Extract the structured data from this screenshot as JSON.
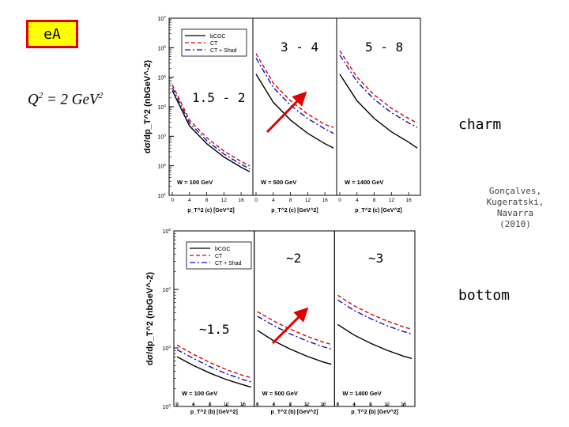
{
  "slide": {
    "ea_label": "eA",
    "q2": {
      "prefix": "Q",
      "sup": "2",
      "middle": " = 2  GeV",
      "sup2": "2"
    },
    "charm_label": "charm",
    "bottom_label": "bottom",
    "citation": [
      "Gonçalves,",
      "Kugeratski,",
      "Navarra",
      "(2010)"
    ],
    "annotations": {
      "charm_ratio_1": "1.5 - 2",
      "charm_ratio_2": "3 - 4",
      "charm_ratio_3": "5 - 8",
      "bottom_ratio_1": "~1.5",
      "bottom_ratio_2": "~2",
      "bottom_ratio_3": "~3"
    },
    "colors": {
      "box_fill": "#ffff00",
      "box_border": "#e00000",
      "arrow": "#e00000",
      "bcgc": "#000000",
      "ct": "#e00000",
      "ct_shad": "#1010c0"
    }
  },
  "chart_data": [
    {
      "type": "line",
      "title": "charm",
      "ylabel": "dσ/dp_T^2 (nbGeV^-2)",
      "xlabel": "p_T^2 (c) [GeV^2]",
      "ylim_log10": [
        1,
        7
      ],
      "y_ticks": [
        "10^1",
        "10^2",
        "10^3",
        "10^4",
        "10^5",
        "10^6",
        "10^7"
      ],
      "xlim": [
        0,
        18
      ],
      "x_ticks": [
        "0",
        "4",
        "8",
        "12",
        "16"
      ],
      "legend": [
        "bCGC",
        "CT",
        "CT + Shad"
      ],
      "legend_position": "top-left",
      "panels": [
        {
          "label": "W = 100 GeV",
          "series": [
            {
              "name": "bCGC",
              "x": [
                0,
                4,
                8,
                12,
                16,
                18
              ],
              "log10y": [
                4.55,
                3.35,
                2.75,
                2.3,
                1.95,
                1.8
              ]
            },
            {
              "name": "CT",
              "x": [
                0,
                4,
                8,
                12,
                16,
                18
              ],
              "log10y": [
                4.75,
                3.55,
                2.95,
                2.5,
                2.15,
                2.0
              ]
            },
            {
              "name": "CT + Shad",
              "x": [
                0,
                4,
                8,
                12,
                16,
                18
              ],
              "log10y": [
                4.65,
                3.45,
                2.85,
                2.4,
                2.05,
                1.9
              ]
            }
          ]
        },
        {
          "label": "W = 500 GeV",
          "series": [
            {
              "name": "bCGC",
              "x": [
                0,
                4,
                8,
                12,
                16,
                18
              ],
              "log10y": [
                5.1,
                4.15,
                3.55,
                3.1,
                2.75,
                2.6
              ]
            },
            {
              "name": "CT",
              "x": [
                0,
                4,
                8,
                12,
                16,
                18
              ],
              "log10y": [
                5.8,
                4.8,
                4.2,
                3.75,
                3.4,
                3.3
              ]
            },
            {
              "name": "CT + Shad",
              "x": [
                0,
                4,
                8,
                12,
                16,
                18
              ],
              "log10y": [
                5.65,
                4.65,
                4.05,
                3.6,
                3.25,
                3.1
              ]
            }
          ]
        },
        {
          "label": "W = 1400 GeV",
          "series": [
            {
              "name": "bCGC",
              "x": [
                0,
                4,
                8,
                12,
                16,
                18
              ],
              "log10y": [
                5.1,
                4.2,
                3.6,
                3.15,
                2.8,
                2.6
              ]
            },
            {
              "name": "CT",
              "x": [
                0,
                4,
                8,
                12,
                16,
                18
              ],
              "log10y": [
                5.9,
                5.0,
                4.4,
                3.95,
                3.6,
                3.45
              ]
            },
            {
              "name": "CT + Shad",
              "x": [
                0,
                4,
                8,
                12,
                16,
                18
              ],
              "log10y": [
                5.75,
                4.85,
                4.25,
                3.8,
                3.45,
                3.3
              ]
            }
          ]
        }
      ]
    },
    {
      "type": "line",
      "title": "bottom",
      "ylabel": "dσ/dp_T^2 (nbGeV^-2)",
      "xlabel": "p_T^2 (b) [GeV^2]",
      "ylim_log10": [
        2,
        5
      ],
      "y_ticks": [
        "10^2",
        "10^3",
        "10^4",
        "10^5"
      ],
      "xlim": [
        0,
        18
      ],
      "x_ticks": [
        "0",
        "4",
        "8",
        "12",
        "16"
      ],
      "legend": [
        "bCGC",
        "CT",
        "CT + Shad"
      ],
      "legend_position": "top-left",
      "panels": [
        {
          "label": "W = 100 GeV",
          "series": [
            {
              "name": "bCGC",
              "x": [
                0,
                4,
                8,
                12,
                16,
                18
              ],
              "log10y": [
                2.85,
                2.7,
                2.57,
                2.46,
                2.37,
                2.33
              ]
            },
            {
              "name": "CT",
              "x": [
                0,
                4,
                8,
                12,
                16,
                18
              ],
              "log10y": [
                3.05,
                2.89,
                2.75,
                2.63,
                2.53,
                2.49
              ]
            },
            {
              "name": "CT + Shad",
              "x": [
                0,
                4,
                8,
                12,
                16,
                18
              ],
              "log10y": [
                2.97,
                2.82,
                2.68,
                2.56,
                2.46,
                2.42
              ]
            }
          ]
        },
        {
          "label": "W = 500 GeV",
          "series": [
            {
              "name": "bCGC",
              "x": [
                0,
                4,
                8,
                12,
                16,
                18
              ],
              "log10y": [
                3.3,
                3.12,
                2.98,
                2.86,
                2.76,
                2.72
              ]
            },
            {
              "name": "CT",
              "x": [
                0,
                4,
                8,
                12,
                16,
                18
              ],
              "log10y": [
                3.62,
                3.46,
                3.32,
                3.2,
                3.1,
                3.06
              ]
            },
            {
              "name": "CT + Shad",
              "x": [
                0,
                4,
                8,
                12,
                16,
                18
              ],
              "log10y": [
                3.54,
                3.38,
                3.24,
                3.12,
                3.02,
                2.98
              ]
            }
          ]
        },
        {
          "label": "W = 1400 GeV",
          "series": [
            {
              "name": "bCGC",
              "x": [
                0,
                4,
                8,
                12,
                16,
                18
              ],
              "log10y": [
                3.4,
                3.22,
                3.08,
                2.96,
                2.86,
                2.82
              ]
            },
            {
              "name": "CT",
              "x": [
                0,
                4,
                8,
                12,
                16,
                18
              ],
              "log10y": [
                3.9,
                3.72,
                3.58,
                3.46,
                3.36,
                3.32
              ]
            },
            {
              "name": "CT + Shad",
              "x": [
                0,
                4,
                8,
                12,
                16,
                18
              ],
              "log10y": [
                3.82,
                3.64,
                3.5,
                3.38,
                3.28,
                3.24
              ]
            }
          ]
        }
      ]
    }
  ]
}
